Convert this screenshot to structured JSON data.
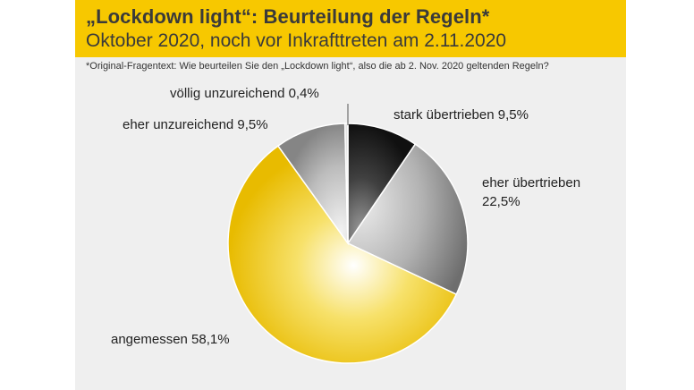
{
  "header": {
    "title": "„Lockdown light“: Beurteilung der Regeln*",
    "subtitle": "Oktober 2020, noch vor Inkrafttreten am 2.11.2020"
  },
  "footnote": "*Original-Fragentext: Wie beurteilen Sie den „Lockdown light“, also die ab 2. Nov. 2020 geltenden Regeln?",
  "colors": {
    "header_bg": "#f7c800",
    "card_bg": "#efefef",
    "yellow": "#f2c400",
    "grey_mid": "#8c8c8c",
    "dark": "#1e1e1e"
  },
  "chart_data": {
    "type": "pie",
    "unit": "%",
    "slices": [
      {
        "name": "stark übertrieben",
        "value": 9.5,
        "label": "stark übertrieben 9,5%",
        "color": "#1e1e1e"
      },
      {
        "name": "eher übertrieben",
        "value": 22.5,
        "label_line1": "eher übertrieben",
        "label_line2": "22,5%",
        "color": "#8c8c8c"
      },
      {
        "name": "angemessen",
        "value": 58.1,
        "label": "angemessen 58,1%",
        "color": "#f2c400"
      },
      {
        "name": "eher unzureichend",
        "value": 9.5,
        "label": "eher unzureichend 9,5%",
        "color": "#9a9a9a"
      },
      {
        "name": "völlig unzureichend",
        "value": 0.4,
        "label": "völlig unzureichend 0,4%",
        "color": "#d8d8d8"
      }
    ]
  }
}
